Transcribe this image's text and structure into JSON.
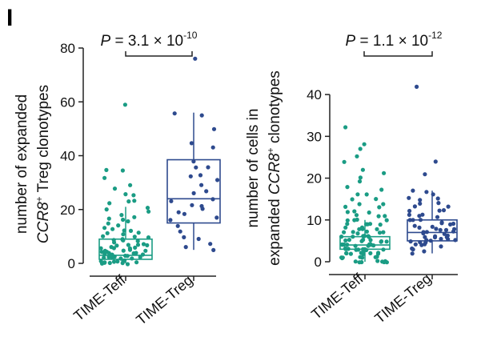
{
  "panel_label": "I",
  "colors": {
    "teff": "#1a9c84",
    "treg": "#2e4a8e",
    "axis": "#222222"
  },
  "chart_data": [
    {
      "type": "box",
      "ylabel": {
        "line1": "number of expanded",
        "line2_gene": "CCR8",
        "line2_sup": "+",
        "line2_rest": " Treg clonotypes"
      },
      "ylim": [
        0,
        80
      ],
      "yticks": [
        "0",
        "20",
        "40",
        "60",
        "80"
      ],
      "categories": [
        "TIME-Teff",
        "TIME-Treg"
      ],
      "annotation": {
        "prefix": "P",
        "text": " = 3.1 × 10",
        "exp": "-10"
      },
      "boxes": [
        {
          "name": "TIME-Teff",
          "q1": 1.5,
          "median": 3,
          "q3": 9,
          "whisker_low": 0,
          "whisker_high": 21
        },
        {
          "name": "TIME-Treg",
          "q1": 15,
          "median": 24,
          "q3": 38.5,
          "whisker_low": 5,
          "whisker_high": 56
        }
      ],
      "points": [
        {
          "group": "TIME-Teff",
          "values": [
            59,
            34.5,
            34.5,
            32,
            29,
            28,
            25,
            25.5,
            23,
            23,
            22,
            21,
            20,
            19,
            18,
            17,
            17,
            16,
            15.5,
            15,
            14,
            13.5,
            13,
            12,
            12,
            11.5,
            11,
            10.5,
            10,
            10,
            9.5,
            9,
            9,
            8.5,
            8.5,
            8,
            8,
            7.5,
            7,
            7,
            6.5,
            6.5,
            6,
            6,
            6,
            5.5,
            5.5,
            5,
            5,
            5,
            4.5,
            4.5,
            4,
            4,
            4,
            3.5,
            3.5,
            3,
            3,
            3,
            2.5,
            2.5,
            2,
            2,
            2,
            2,
            1.5,
            1.5,
            1,
            1,
            1,
            1,
            0.5,
            0.5,
            0.5,
            0,
            0,
            0,
            0,
            0
          ]
        },
        {
          "group": "TIME-Treg",
          "values": [
            76,
            56,
            55,
            50,
            45,
            43,
            38,
            36,
            36,
            33,
            32,
            31,
            29,
            27,
            26,
            24,
            23,
            22,
            21,
            20,
            19,
            18,
            17,
            16,
            14,
            12,
            10,
            9,
            7,
            6,
            5
          ]
        }
      ]
    },
    {
      "type": "box",
      "ylabel": {
        "line1": "number of cells in",
        "line2_pre": "expanded ",
        "line2_gene": "CCR8",
        "line2_sup": "+",
        "line2_rest": " clonotypes"
      },
      "ylim": [
        0,
        45
      ],
      "yticks": [
        "0",
        "10",
        "20",
        "30",
        "40"
      ],
      "categories": [
        "TIME-Teff",
        "TIME-Treg"
      ],
      "annotation": {
        "prefix": "P",
        "text": " = 1.1 × 10",
        "exp": "-12"
      },
      "boxes": [
        {
          "name": "TIME-Teff",
          "q1": 3,
          "median": 4,
          "q3": 6,
          "whisker_low": 0,
          "whisker_high": 10
        },
        {
          "name": "TIME-Treg",
          "q1": 5,
          "median": 7,
          "q3": 10,
          "whisker_low": 2,
          "whisker_high": 17
        }
      ],
      "points": [
        {
          "group": "TIME-Teff",
          "values": [
            32,
            28,
            27,
            25,
            24,
            22,
            21,
            20,
            19,
            18,
            17,
            16,
            16,
            15,
            15,
            14,
            14,
            13,
            13,
            12,
            12,
            12,
            11,
            11,
            11,
            10,
            10,
            10,
            10,
            9,
            9,
            9,
            9,
            9,
            8,
            8,
            8,
            8,
            8,
            7,
            7,
            7,
            7,
            7,
            7,
            6,
            6,
            6,
            6,
            6,
            6,
            6,
            5,
            5,
            5,
            5,
            5,
            5,
            5,
            5,
            4,
            4,
            4,
            4,
            4,
            4,
            4,
            4,
            4,
            4,
            3,
            3,
            3,
            3,
            3,
            3,
            3,
            3,
            3,
            3,
            3,
            2,
            2,
            2,
            2,
            2,
            2,
            2,
            2,
            2,
            1,
            1,
            1,
            1,
            1,
            1,
            1,
            0,
            0,
            0,
            0,
            0,
            0,
            0,
            0
          ]
        },
        {
          "group": "TIME-Treg",
          "values": [
            42,
            24,
            21,
            17,
            16.5,
            16,
            15.5,
            15,
            15,
            14,
            14,
            13,
            13,
            12.5,
            12,
            12,
            11.5,
            11,
            11,
            10.5,
            10,
            10,
            10,
            9.5,
            9,
            9,
            9,
            8.5,
            8.5,
            8,
            8,
            8,
            7.5,
            7.5,
            7,
            7,
            7,
            7,
            6.5,
            6.5,
            6,
            6,
            6,
            6,
            5.5,
            5.5,
            5,
            5,
            5,
            5,
            4.5,
            4.5,
            4,
            4,
            4,
            3.5,
            3,
            3,
            2.5,
            2
          ]
        }
      ]
    }
  ]
}
